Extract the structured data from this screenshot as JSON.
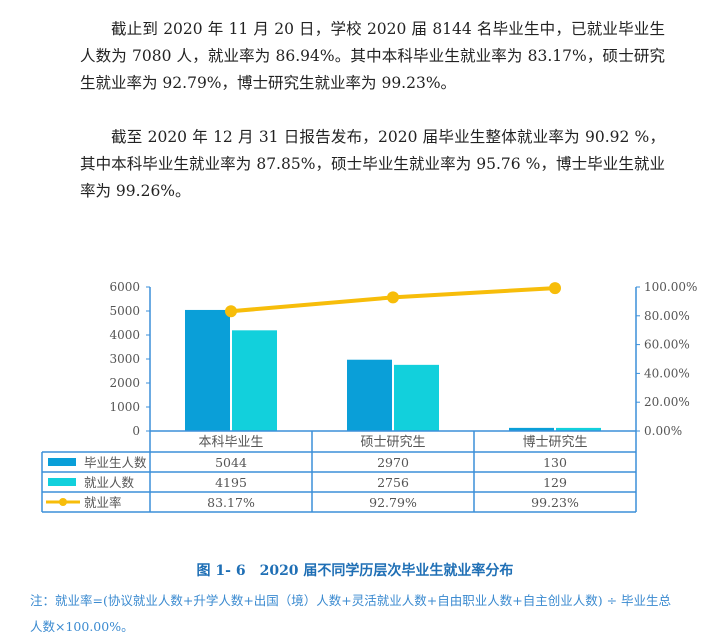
{
  "paragraphs": [
    "截止到 2020 年 11 月 20 日，学校 2020 届 8144 名毕业生中，已就业毕业生人数为 7080 人，就业率为 86.94%。其中本科毕业生就业率为 83.17%，硕士研究生就业率为 92.79%，博士研究生就业率为 99.23%。",
    "截至 2020 年 12 月 31 日报告发布，2020 届毕业生整体就业率为 90.92 %，其中本科毕业生就业率为 87.85%，硕士毕业生就业率为 95.76 %，博士毕业生就业率为 99.26%。"
  ],
  "chart_data": {
    "type": "bar",
    "categories": [
      "本科毕业生",
      "硕士研究生",
      "博士研究生"
    ],
    "series": [
      {
        "name": "毕业生人数",
        "kind": "bar",
        "axis": "left",
        "color": "#0a9fd8",
        "values": [
          5044,
          2970,
          130
        ],
        "labels": [
          "5044",
          "2970",
          "130"
        ]
      },
      {
        "name": "就业人数",
        "kind": "bar",
        "axis": "left",
        "color": "#12d0dc",
        "values": [
          4195,
          2756,
          129
        ],
        "labels": [
          "4195",
          "2756",
          "129"
        ]
      },
      {
        "name": "就业率",
        "kind": "line",
        "axis": "right",
        "color": "#f7bd0a",
        "values": [
          83.17,
          92.79,
          99.23
        ],
        "labels": [
          "83.17%",
          "92.79%",
          "99.23%"
        ]
      }
    ],
    "ylim": [
      0,
      6000
    ],
    "y_ticks": [
      "0",
      "1000",
      "2000",
      "3000",
      "4000",
      "5000",
      "6000"
    ],
    "y2lim": [
      0,
      100
    ],
    "y2_ticks": [
      "0.00%",
      "20.00%",
      "40.00%",
      "60.00%",
      "80.00%",
      "100.00%"
    ],
    "grid": false,
    "legend": "data-table-left",
    "axis_color": "#3b8fd9"
  },
  "caption": "图 1- 6　2020 届不同学历层次毕业生就业率分布",
  "note": "注：就业率=(协议就业人数+升学人数+出国（境）人数+灵活就业人数+自由职业人数+自主创业人数) ÷ 毕业生总人数×100.00%。"
}
